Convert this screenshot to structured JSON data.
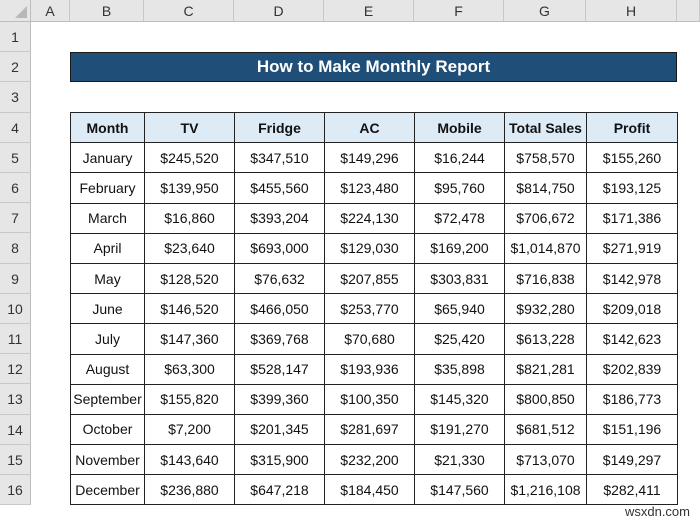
{
  "columns": [
    "A",
    "B",
    "C",
    "D",
    "E",
    "F",
    "G",
    "H"
  ],
  "rows": [
    "1",
    "2",
    "3",
    "4",
    "5",
    "6",
    "7",
    "8",
    "9",
    "10",
    "11",
    "12",
    "13",
    "14",
    "15",
    "16"
  ],
  "title": "How to Make Monthly Report",
  "table": {
    "headers": [
      "Month",
      "TV",
      "Fridge",
      "AC",
      "Mobile",
      "Total Sales",
      "Profit"
    ],
    "rows": [
      [
        "January",
        "$245,520",
        "$347,510",
        "$149,296",
        "$16,244",
        "$758,570",
        "$155,260"
      ],
      [
        "February",
        "$139,950",
        "$455,560",
        "$123,480",
        "$95,760",
        "$814,750",
        "$193,125"
      ],
      [
        "March",
        "$16,860",
        "$393,204",
        "$224,130",
        "$72,478",
        "$706,672",
        "$171,386"
      ],
      [
        "April",
        "$23,640",
        "$693,000",
        "$129,030",
        "$169,200",
        "$1,014,870",
        "$271,919"
      ],
      [
        "May",
        "$128,520",
        "$76,632",
        "$207,855",
        "$303,831",
        "$716,838",
        "$142,978"
      ],
      [
        "June",
        "$146,520",
        "$466,050",
        "$253,770",
        "$65,940",
        "$932,280",
        "$209,018"
      ],
      [
        "July",
        "$147,360",
        "$369,768",
        "$70,680",
        "$25,420",
        "$613,228",
        "$142,623"
      ],
      [
        "August",
        "$63,300",
        "$528,147",
        "$193,936",
        "$35,898",
        "$821,281",
        "$202,839"
      ],
      [
        "September",
        "$155,820",
        "$399,360",
        "$100,350",
        "$145,320",
        "$800,850",
        "$186,773"
      ],
      [
        "October",
        "$7,200",
        "$201,345",
        "$281,697",
        "$191,270",
        "$681,512",
        "$151,196"
      ],
      [
        "November",
        "$143,640",
        "$315,900",
        "$232,200",
        "$21,330",
        "$713,070",
        "$149,297"
      ],
      [
        "December",
        "$236,880",
        "$647,218",
        "$184,450",
        "$147,560",
        "$1,216,108",
        "$282,411"
      ]
    ]
  },
  "watermark": "wsxdn.com",
  "colors": {
    "title_bg": "#1f4e78",
    "header_bg": "#ddebf7"
  }
}
